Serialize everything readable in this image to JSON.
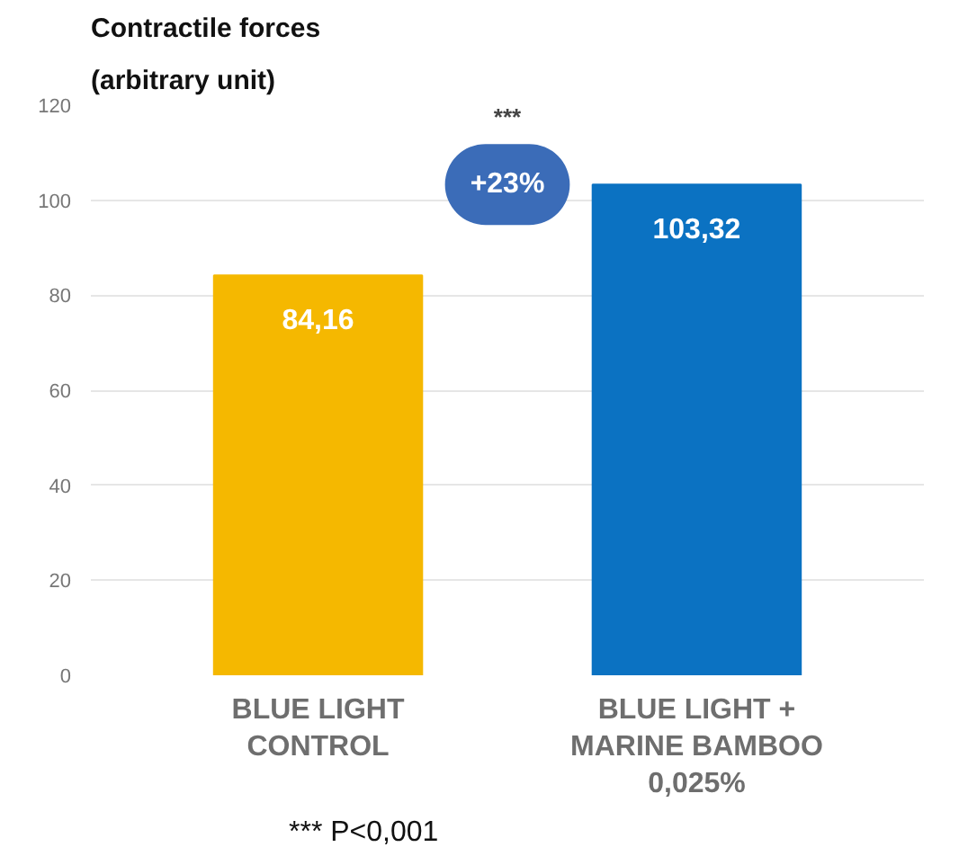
{
  "chart_data": {
    "type": "bar",
    "title": "Contractile forces",
    "subtitle": "(arbitrary unit)",
    "categories": [
      "BLUE LIGHT\nCONTROL",
      "BLUE LIGHT +\nMARINE BAMBOO\n0,025%"
    ],
    "values": [
      84.16,
      103.32
    ],
    "colors": [
      "#f5b800",
      "#0b72c2"
    ],
    "value_labels": [
      "84,16",
      "103,32"
    ],
    "ylim": [
      0,
      120
    ],
    "yticks": [
      0,
      20,
      40,
      60,
      80,
      100,
      120
    ],
    "grid": "y",
    "annotations": [
      "***",
      "+23%",
      "*** P<0,001"
    ]
  }
}
